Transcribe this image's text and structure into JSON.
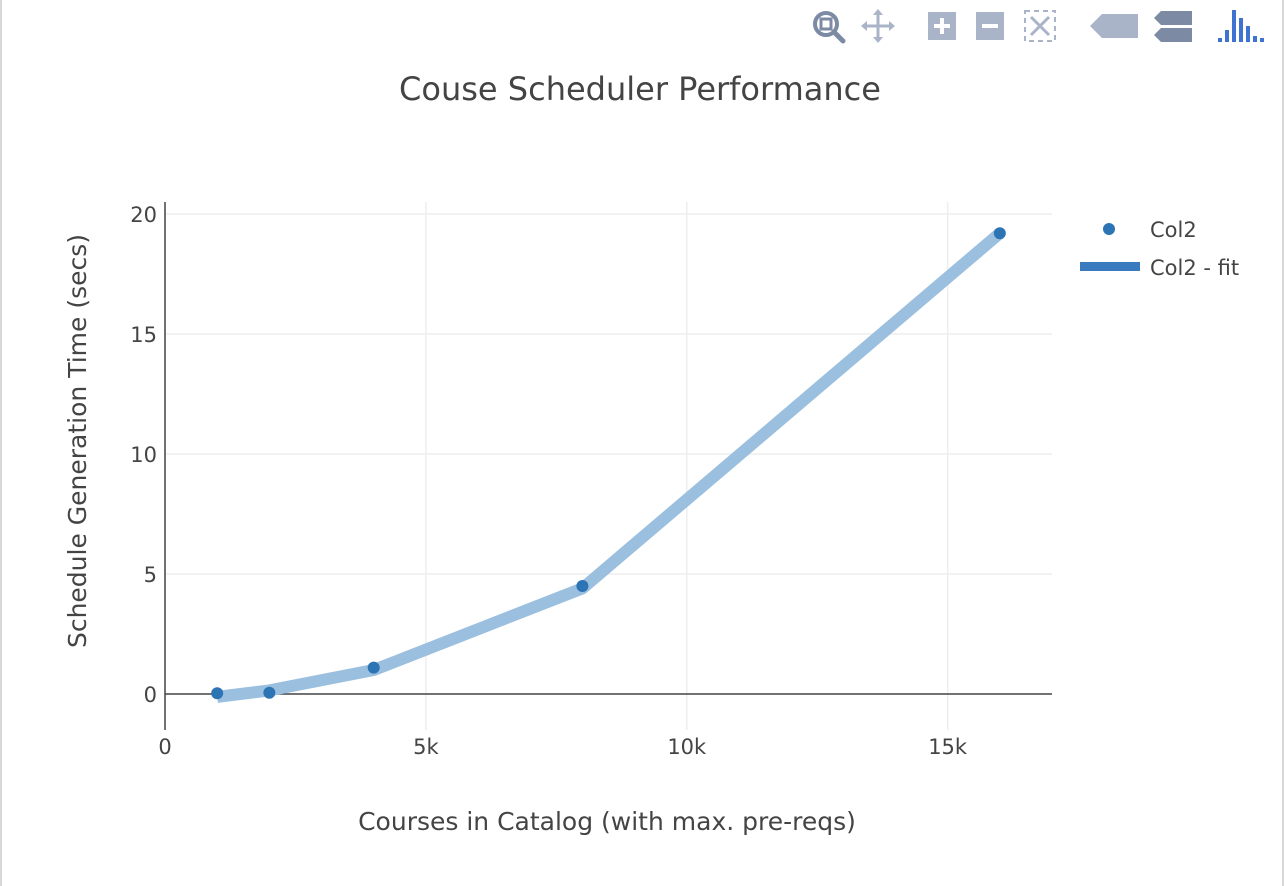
{
  "modebar": {
    "buttons": [
      {
        "icon": "zoom-icon"
      },
      {
        "icon": "pan-icon"
      },
      {
        "icon": "zoom-in-icon"
      },
      {
        "icon": "zoom-out-icon"
      },
      {
        "icon": "autoscale-icon"
      },
      {
        "icon": "hover-closest-icon"
      },
      {
        "icon": "hover-compare-icon"
      },
      {
        "icon": "plotly-logo-icon"
      }
    ]
  },
  "colors": {
    "marker": "#2d74b5",
    "fit_line": "#9bbfdf",
    "legend_fit": "#3a7bbf",
    "grid": "#eeeeee",
    "zeroline": "#444444",
    "modebar_icon": "#aab4c8",
    "modebar_icon_dark": "#7d8aa3",
    "plotly_logo": "#3f73d2"
  },
  "chart_data": {
    "type": "scatter",
    "title": "Couse Scheduler Performance",
    "xlabel": "Courses in Catalog (with max. pre-reqs)",
    "ylabel": "Schedule Generation Time (secs)",
    "xlim": [
      0,
      17000
    ],
    "ylim": [
      -1.5,
      20.5
    ],
    "xticks": [
      0,
      5000,
      10000,
      15000
    ],
    "xtick_labels": [
      "0",
      "5k",
      "10k",
      "15k"
    ],
    "yticks": [
      0,
      5,
      10,
      15,
      20
    ],
    "ytick_labels": [
      "0",
      "5",
      "10",
      "15",
      "20"
    ],
    "grid": true,
    "legend_position": "top-right",
    "series": [
      {
        "name": "Col2",
        "mode": "markers",
        "x": [
          1000,
          2000,
          4000,
          8000,
          16000
        ],
        "y": [
          0.03,
          0.05,
          1.1,
          4.5,
          19.2
        ]
      },
      {
        "name": "Col2 - fit",
        "mode": "lines",
        "x": [
          1000,
          2000,
          4000,
          8000,
          16000
        ],
        "y": [
          -0.12,
          0.15,
          1.0,
          4.4,
          19.2
        ]
      }
    ]
  }
}
